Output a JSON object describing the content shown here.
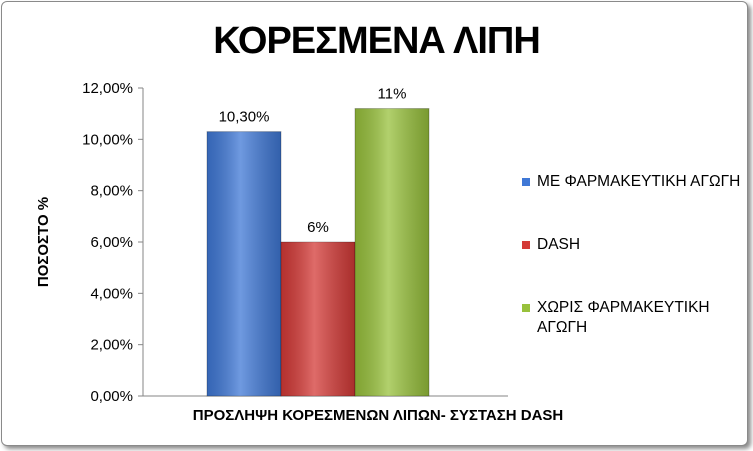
{
  "chart_data": {
    "type": "bar",
    "title": "ΚΟΡΕΣΜΕΝΑ ΛΙΠΗ",
    "xlabel": "ΠΡΟΣΛΗΨΗ ΚΟΡΕΣΜΕΝΩΝ ΛΙΠΩΝ- ΣΥΣΤΑΣΗ DASH",
    "ylabel": "ΠΟΣΟΣΤΟ %",
    "ylim": [
      0,
      0.12
    ],
    "yticks": [
      "0,00%",
      "2,00%",
      "4,00%",
      "6,00%",
      "8,00%",
      "10,00%",
      "12,00%"
    ],
    "grid": false,
    "legend_position": "right",
    "series": [
      {
        "name": "ΜΕ ΦΑΡΜΑΚΕΥΤΙΚΗ ΑΓΩΓΗ",
        "value": 0.103,
        "label": "10,30%",
        "color": "#3f78d6"
      },
      {
        "name": "DASH",
        "value": 0.06,
        "label": "6%",
        "color": "#d43a37"
      },
      {
        "name": "ΧΩΡΙΣ ΦΑΡΜΑΚΕΥΤΙΚΗ ΑΓΩΓΗ",
        "value": 0.112,
        "label": "11%",
        "color": "#98c13c"
      }
    ]
  }
}
